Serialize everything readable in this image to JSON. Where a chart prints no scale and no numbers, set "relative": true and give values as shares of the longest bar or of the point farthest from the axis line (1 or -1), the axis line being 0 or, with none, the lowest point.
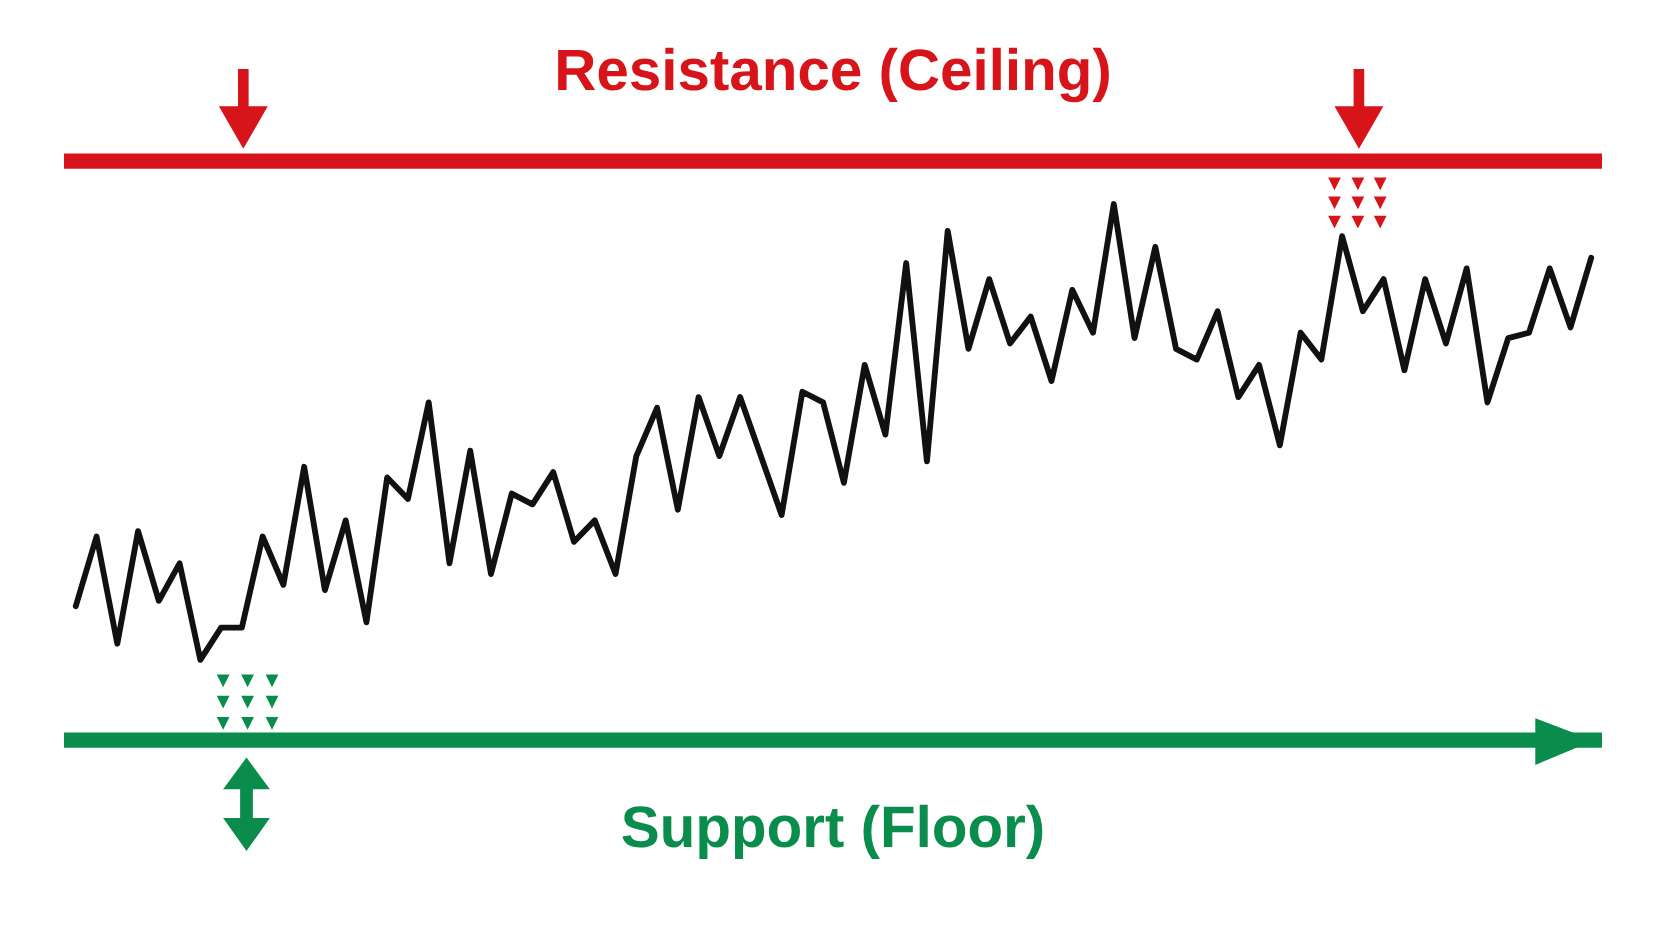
{
  "chart_data": {
    "type": "line",
    "relative": true,
    "color": "#111111",
    "categories": [
      null,
      null,
      null,
      null,
      null,
      null,
      null,
      null,
      null,
      null,
      null,
      null,
      null,
      null,
      null,
      null,
      null,
      null,
      null,
      null,
      null,
      null,
      null,
      null,
      null,
      null,
      null,
      null,
      null,
      null,
      null,
      null,
      null,
      null,
      null,
      null,
      null,
      null,
      null,
      null,
      null,
      null,
      null,
      null,
      null,
      null,
      null,
      null,
      null,
      null,
      null,
      null,
      null,
      null,
      null,
      null,
      null,
      null,
      null,
      null,
      null,
      null,
      null,
      null,
      null,
      null,
      null,
      null,
      null,
      null,
      null,
      null,
      null,
      null
    ],
    "values": [
      0.25,
      0.38,
      0.18,
      0.39,
      0.26,
      0.33,
      0.15,
      0.21,
      0.21,
      0.38,
      0.29,
      0.51,
      0.28,
      0.41,
      0.22,
      0.49,
      0.45,
      0.63,
      0.33,
      0.54,
      0.31,
      0.46,
      0.44,
      0.5,
      0.37,
      0.41,
      0.31,
      0.53,
      0.62,
      0.43,
      0.64,
      0.53,
      0.64,
      0.53,
      0.42,
      0.65,
      0.63,
      0.48,
      0.7,
      0.57,
      0.89,
      0.52,
      0.95,
      0.73,
      0.86,
      0.74,
      0.79,
      0.67,
      0.84,
      0.76,
      1,
      0.75,
      0.92,
      0.73,
      0.71,
      0.8,
      0.64,
      0.7,
      0.55,
      0.76,
      0.71,
      0.94,
      0.8,
      0.86,
      0.69,
      0.86,
      0.74,
      0.88,
      0.63,
      0.75,
      0.76,
      0.88,
      0.77,
      0.9
    ],
    "ref_lines": [
      {
        "axis": "y",
        "value": 1.08,
        "label": "Resistance (Ceiling)",
        "color": "#d7141a"
      },
      {
        "axis": "y",
        "value": 0,
        "label": "Support (Floor)",
        "color": "#0a8c4c"
      }
    ]
  }
}
